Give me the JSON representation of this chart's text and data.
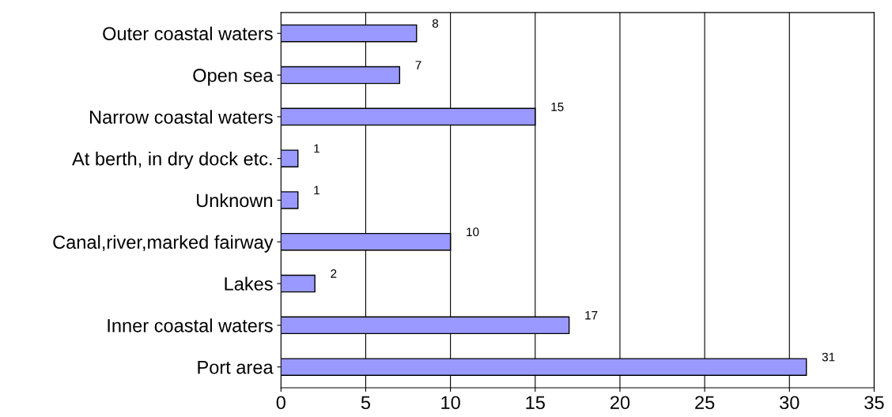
{
  "chart_data": {
    "type": "bar",
    "orientation": "horizontal",
    "categories": [
      "Outer coastal waters",
      "Open sea",
      "Narrow coastal waters",
      "At berth, in dry dock etc.",
      "Unknown",
      "Canal,river,marked fairway",
      "Lakes",
      "Inner coastal waters",
      "Port area"
    ],
    "values": [
      8,
      7,
      15,
      1,
      1,
      10,
      2,
      17,
      31
    ],
    "color": "#9999ff",
    "xlim": [
      0,
      35
    ],
    "xticks": [
      0,
      5,
      10,
      15,
      20,
      25,
      30,
      35
    ],
    "grid": "x",
    "data_labels": true
  }
}
